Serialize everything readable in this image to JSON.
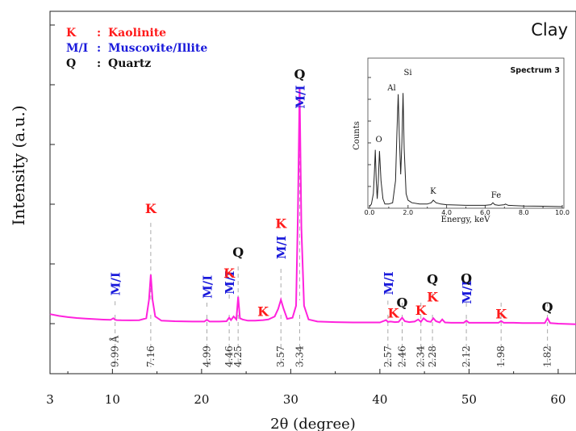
{
  "chart_data": [
    {
      "type": "line",
      "title": "Clay",
      "xlabel": "2θ (degree)",
      "ylabel": "Intensity (a.u.)",
      "xlim": [
        3,
        62
      ],
      "x_ticks": [
        "3",
        "10",
        "20",
        "30",
        "40",
        "50",
        "60"
      ],
      "line_color": "#ff22dd",
      "legend": [
        {
          "symbol": "K",
          "sep": ":",
          "name": "Kaolinite",
          "color": "#ff1a1a"
        },
        {
          "symbol": "M/I",
          "sep": ":",
          "name": "Muscovite/Illite",
          "color": "#1a1adb"
        },
        {
          "symbol": "Q",
          "sep": ":",
          "name": "Quartz",
          "color": "#111111"
        }
      ],
      "series": [
        {
          "x": [
            3,
            4,
            5,
            6,
            7,
            8,
            9,
            9.8,
            10.1,
            10.3,
            10.5,
            11,
            12,
            13,
            13.8,
            14.1,
            14.3,
            14.5,
            14.8,
            15.5,
            17,
            19,
            20.3,
            20.6,
            20.9,
            22,
            22.8,
            23.1,
            23.3,
            23.6,
            23.9,
            24.1,
            24.3,
            24.6,
            25.2,
            26,
            26.9,
            27.5,
            28.2,
            28.6,
            28.9,
            29.2,
            29.6,
            30.2,
            30.6,
            30.8,
            31.0,
            31.2,
            31.5,
            32,
            33,
            35,
            37,
            38.5,
            40,
            40.7,
            40.9,
            41.2,
            41.7,
            42.1,
            42.5,
            42.8,
            43.3,
            43.9,
            44.3,
            44.6,
            44.9,
            45.3,
            45.7,
            46.0,
            46.3,
            46.7,
            47.0,
            47.3,
            48,
            49.4,
            49.7,
            50.0,
            51,
            52.5,
            53.3,
            53.6,
            53.9,
            55,
            56,
            57,
            58.5,
            58.8,
            59.1,
            60,
            61,
            62
          ],
          "y": [
            0.16,
            0.13,
            0.11,
            0.095,
            0.085,
            0.075,
            0.068,
            0.064,
            0.09,
            0.065,
            0.06,
            0.057,
            0.055,
            0.058,
            0.09,
            0.4,
            0.82,
            0.4,
            0.12,
            0.05,
            0.04,
            0.035,
            0.035,
            0.065,
            0.035,
            0.035,
            0.04,
            0.1,
            0.06,
            0.12,
            0.07,
            0.45,
            0.09,
            0.07,
            0.05,
            0.05,
            0.06,
            0.07,
            0.12,
            0.25,
            0.4,
            0.25,
            0.08,
            0.1,
            0.3,
            1.8,
            3.95,
            1.6,
            0.3,
            0.07,
            0.035,
            0.025,
            0.02,
            0.02,
            0.02,
            0.06,
            0.03,
            0.035,
            0.025,
            0.03,
            0.1,
            0.04,
            0.025,
            0.035,
            0.07,
            0.03,
            0.09,
            0.04,
            0.03,
            0.09,
            0.04,
            0.02,
            0.07,
            0.02,
            0.015,
            0.015,
            0.05,
            0.015,
            0.015,
            0.015,
            0.015,
            0.045,
            0.015,
            0.015,
            0.01,
            0.01,
            0.01,
            0.09,
            0.01,
            0.0,
            -0.005,
            -0.01
          ]
        }
      ],
      "annotations": [
        {
          "x": 10.3,
          "label": "M/I",
          "color": "#1a1adb",
          "level": 0.47,
          "d": "9.99 Å"
        },
        {
          "x": 14.3,
          "label": "K",
          "color": "#ff1a1a",
          "level": 1.85,
          "d": "7.16"
        },
        {
          "x": 20.6,
          "label": "M/I",
          "color": "#1a1adb",
          "level": 0.42,
          "d": "4.99"
        },
        {
          "x": 23.1,
          "label": "M/I",
          "color": "#1a1adb",
          "level": 0.49
        },
        {
          "x": 23.1,
          "label": "K",
          "color": "#ff1a1a",
          "level": 0.77,
          "d": "4.46"
        },
        {
          "x": 24.1,
          "label": "Q",
          "color": "#111111",
          "level": 1.12,
          "d": "4.25"
        },
        {
          "x": 26.9,
          "label": "K",
          "color": "#ff1a1a",
          "level": 0.13
        },
        {
          "x": 28.9,
          "label": "M/I",
          "color": "#1a1adb",
          "level": 1.08,
          "d": "3.57"
        },
        {
          "x": 28.9,
          "label": "K",
          "color": "#ff1a1a",
          "level": 1.6
        },
        {
          "x": 31.0,
          "label": "Q",
          "color": "#111111",
          "level": 4.1,
          "d": "3.34"
        },
        {
          "x": 31.0,
          "label": "M/I",
          "color": "#1a1adb",
          "level": 3.6
        },
        {
          "x": 40.9,
          "label": "M/I",
          "color": "#1a1adb",
          "level": 0.48,
          "d": "2.57"
        },
        {
          "x": 41.5,
          "label": "K",
          "color": "#ff1a1a",
          "level": 0.1
        },
        {
          "x": 42.5,
          "label": "Q",
          "color": "#111111",
          "level": 0.28,
          "d": "2.46"
        },
        {
          "x": 44.6,
          "label": "K",
          "color": "#ff1a1a",
          "level": 0.15,
          "d": "2.34"
        },
        {
          "x": 45.9,
          "label": "K",
          "color": "#ff1a1a",
          "level": 0.37
        },
        {
          "x": 45.9,
          "label": "Q",
          "color": "#111111",
          "level": 0.67,
          "d": "2.28"
        },
        {
          "x": 49.7,
          "label": "M/I",
          "color": "#1a1adb",
          "level": 0.33,
          "d": "2.12"
        },
        {
          "x": 49.7,
          "label": "Q",
          "color": "#111111",
          "level": 0.68
        },
        {
          "x": 53.6,
          "label": "K",
          "color": "#ff1a1a",
          "level": 0.09,
          "d": "1.98"
        },
        {
          "x": 58.8,
          "label": "Q",
          "color": "#111111",
          "level": 0.2,
          "d": "1.82"
        }
      ]
    },
    {
      "type": "line",
      "title": "Spectrum 3",
      "xlabel": "Energy, keV",
      "ylabel": "Counts",
      "xlim": [
        0,
        10
      ],
      "x_ticks": [
        "0.0",
        "2.0",
        "4.0",
        "6.0",
        "8.0",
        "10.0"
      ],
      "series": [
        {
          "x": [
            0,
            0.1,
            0.2,
            0.25,
            0.3,
            0.35,
            0.4,
            0.45,
            0.52,
            0.6,
            0.7,
            0.8,
            1.0,
            1.2,
            1.35,
            1.42,
            1.49,
            1.55,
            1.62,
            1.68,
            1.74,
            1.8,
            1.9,
            2.0,
            2.2,
            2.6,
            3.0,
            3.2,
            3.31,
            3.45,
            3.7,
            4.0,
            5.0,
            6.0,
            6.3,
            6.4,
            6.5,
            6.7,
            7.0,
            7.05,
            7.2,
            8,
            9,
            10
          ],
          "y": [
            0,
            0.02,
            0.1,
            0.25,
            0.44,
            0.2,
            0.06,
            0.18,
            0.43,
            0.2,
            0.06,
            0.02,
            0.02,
            0.03,
            0.2,
            0.55,
            0.87,
            0.55,
            0.25,
            0.5,
            0.88,
            0.45,
            0.1,
            0.05,
            0.03,
            0.02,
            0.02,
            0.03,
            0.05,
            0.03,
            0.02,
            0.015,
            0.01,
            0.01,
            0.015,
            0.03,
            0.015,
            0.01,
            0.015,
            0.02,
            0.01,
            0.005,
            0.003,
            0.0
          ]
        }
      ],
      "annotations": [
        {
          "x": 0.4,
          "label": "O",
          "level": 0.5
        },
        {
          "x": 1.4,
          "label": "Al",
          "level": 0.9
        },
        {
          "x": 1.74,
          "label": "Si",
          "level": 0.97
        },
        {
          "x": 3.3,
          "label": "K",
          "level": 0.1
        },
        {
          "x": 6.4,
          "label": "Fe",
          "level": 0.07
        }
      ]
    }
  ]
}
